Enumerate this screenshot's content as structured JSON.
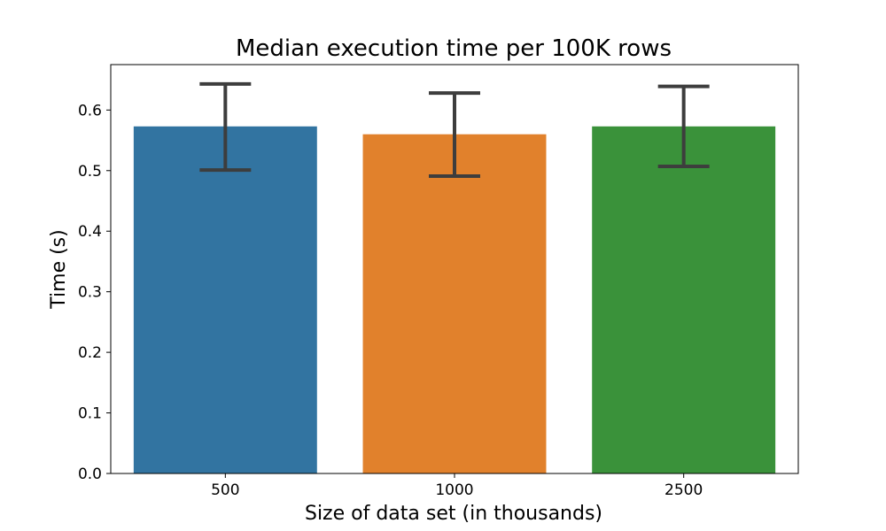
{
  "chart_data": {
    "type": "bar",
    "title": "Median execution time per 100K rows",
    "xlabel": "Size of data set (in thousands)",
    "ylabel": "Time (s)",
    "categories": [
      "500",
      "1000",
      "2500"
    ],
    "values": [
      0.573,
      0.56,
      0.573
    ],
    "error_low": [
      0.501,
      0.491,
      0.507
    ],
    "error_high": [
      0.643,
      0.628,
      0.639
    ],
    "colors": [
      "#3274a1",
      "#e1812c",
      "#3a923a"
    ],
    "error_color": "#3d3d3d",
    "yticks": [
      "0.0",
      "0.1",
      "0.2",
      "0.3",
      "0.4",
      "0.5",
      "0.6"
    ],
    "ylim": [
      0,
      0.675
    ],
    "grid": false,
    "legend": "none"
  }
}
